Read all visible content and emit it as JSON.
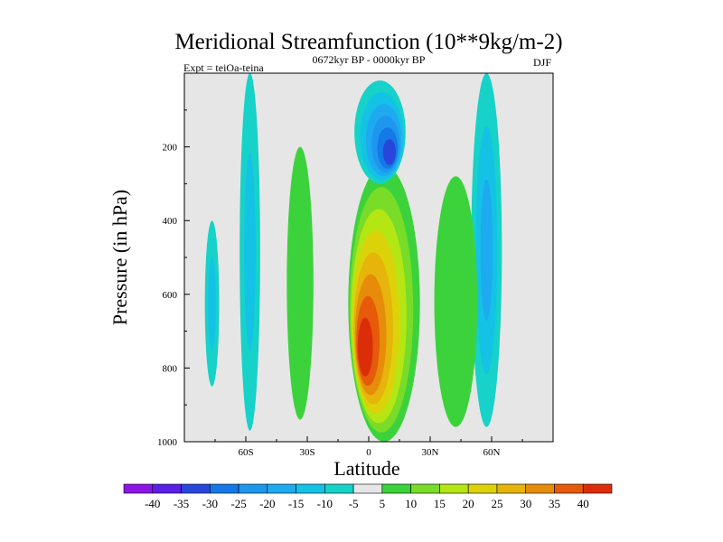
{
  "chart_data": {
    "type": "heatmap",
    "title": "Meridional Streamfunction (10**9kg/m-2)",
    "subtitle": "0672kyr BP - 0000kyr BP",
    "left_label": "Expt = teiOa-teina",
    "right_label": "DJF",
    "xlabel": "Latitude",
    "ylabel": "Pressure (in hPa)",
    "xlim": [
      -90,
      90
    ],
    "ylim": [
      1000,
      0
    ],
    "x_ticks": [
      {
        "value": -60,
        "label": "60S"
      },
      {
        "value": -30,
        "label": "30S"
      },
      {
        "value": 0,
        "label": "0"
      },
      {
        "value": 30,
        "label": "30N"
      },
      {
        "value": 60,
        "label": "60N"
      }
    ],
    "y_ticks": [
      {
        "value": 200,
        "label": "200"
      },
      {
        "value": 400,
        "label": "400"
      },
      {
        "value": 600,
        "label": "600"
      },
      {
        "value": 800,
        "label": "800"
      },
      {
        "value": 1000,
        "label": "1000"
      }
    ],
    "colorbar": {
      "levels": [
        "-40",
        "-35",
        "-30",
        "-25",
        "-20",
        "-15",
        "-10",
        "-5",
        "5",
        "10",
        "15",
        "20",
        "25",
        "30",
        "35",
        "40"
      ],
      "colors": [
        "#8c14e6",
        "#5a1ee6",
        "#2846dc",
        "#1478e6",
        "#1e96ee",
        "#1eaaf0",
        "#14c2e6",
        "#16d2c8",
        "#e6e6e6",
        "#3cd23c",
        "#78dc28",
        "#b4e614",
        "#dcd20a",
        "#e6b40a",
        "#e68c0a",
        "#e65a0a",
        "#dc2d0a"
      ]
    },
    "features": [
      {
        "name": "tropical-positive-cell",
        "sign": "positive",
        "lat_range": [
          -10,
          25
        ],
        "p_range": [
          250,
          1000
        ],
        "peak_value": 40,
        "peak_at": {
          "lat": -3,
          "p": 760
        }
      },
      {
        "name": "upper-negative-cell",
        "sign": "negative",
        "lat_range": [
          -7,
          18
        ],
        "p_range": [
          20,
          300
        ],
        "peak_value": -30,
        "peak_at": {
          "lat": 11,
          "p": 225
        }
      },
      {
        "name": "sh-subtropical-band",
        "sign": "positive",
        "lat_range": [
          -40,
          -27
        ],
        "p_range": [
          200,
          940
        ],
        "peak_value": 5
      },
      {
        "name": "sh-midlat-band",
        "sign": "negative",
        "lat_range": [
          -63,
          -53
        ],
        "p_range": [
          0,
          970
        ],
        "peak_value": -10
      },
      {
        "name": "sh-polar-band",
        "sign": "negative",
        "lat_range": [
          -80,
          -73
        ],
        "p_range": [
          400,
          850
        ],
        "peak_value": -10
      },
      {
        "name": "nh-negative-band",
        "sign": "negative",
        "lat_range": [
          50,
          65
        ],
        "p_range": [
          0,
          960
        ],
        "peak_value": -15
      },
      {
        "name": "nh-positive-band",
        "sign": "positive",
        "lat_range": [
          32,
          53
        ],
        "p_range": [
          280,
          960
        ],
        "peak_value": 5
      }
    ]
  }
}
